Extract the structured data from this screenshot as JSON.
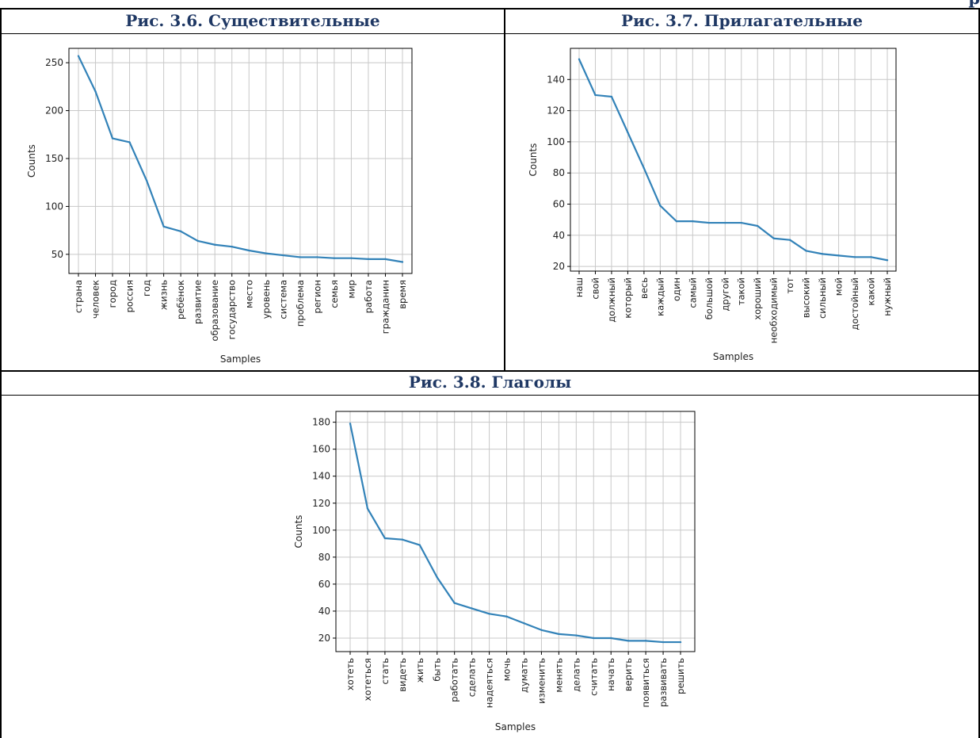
{
  "header_overflow": "р",
  "captions": {
    "fig1": "Рис. 3.6. Существительные",
    "fig2": "Рис. 3.7. Прилагательные",
    "fig3": "Рис. 3.8. Глаголы"
  },
  "chart_data": [
    {
      "type": "line",
      "title": "",
      "xlabel": "Samples",
      "ylabel": "Counts",
      "categories": [
        "страна",
        "человек",
        "город",
        "россия",
        "год",
        "жизнь",
        "ребёнок",
        "развитие",
        "образование",
        "государство",
        "место",
        "уровень",
        "система",
        "проблема",
        "регион",
        "семья",
        "мир",
        "работа",
        "гражданин",
        "время"
      ],
      "values": [
        257,
        220,
        171,
        167,
        127,
        79,
        74,
        64,
        60,
        58,
        54,
        51,
        49,
        47,
        47,
        46,
        46,
        45,
        45,
        42
      ],
      "ylim": [
        30,
        265
      ],
      "yticks": [
        50,
        100,
        150,
        200,
        250
      ],
      "grid": true,
      "color": "#3282b8"
    },
    {
      "type": "line",
      "title": "",
      "xlabel": "Samples",
      "ylabel": "Counts",
      "categories": [
        "наш",
        "свой",
        "должный",
        "который",
        "весь",
        "каждый",
        "один",
        "самый",
        "большой",
        "другой",
        "такой",
        "хороший",
        "необходимый",
        "тот",
        "высокий",
        "сильный",
        "мой",
        "достойный",
        "какой",
        "нужный"
      ],
      "values": [
        153,
        130,
        129,
        106,
        83,
        59,
        49,
        49,
        48,
        48,
        48,
        46,
        38,
        37,
        30,
        28,
        27,
        26,
        26,
        24
      ],
      "ylim": [
        17,
        160
      ],
      "yticks": [
        20,
        40,
        60,
        80,
        100,
        120,
        140
      ],
      "grid": true,
      "color": "#3282b8"
    },
    {
      "type": "line",
      "title": "",
      "xlabel": "Samples",
      "ylabel": "Counts",
      "categories": [
        "хотеть",
        "хотеться",
        "стать",
        "видеть",
        "жить",
        "быть",
        "работать",
        "сделать",
        "надеяться",
        "мочь",
        "думать",
        "изменить",
        "менять",
        "делать",
        "считать",
        "начать",
        "верить",
        "появиться",
        "развивать",
        "решить"
      ],
      "values": [
        179,
        116,
        94,
        93,
        89,
        65,
        46,
        42,
        38,
        36,
        31,
        26,
        23,
        22,
        20,
        20,
        18,
        18,
        17,
        17
      ],
      "ylim": [
        10,
        188
      ],
      "yticks": [
        20,
        40,
        60,
        80,
        100,
        120,
        140,
        160,
        180
      ],
      "grid": true,
      "color": "#3282b8"
    }
  ]
}
